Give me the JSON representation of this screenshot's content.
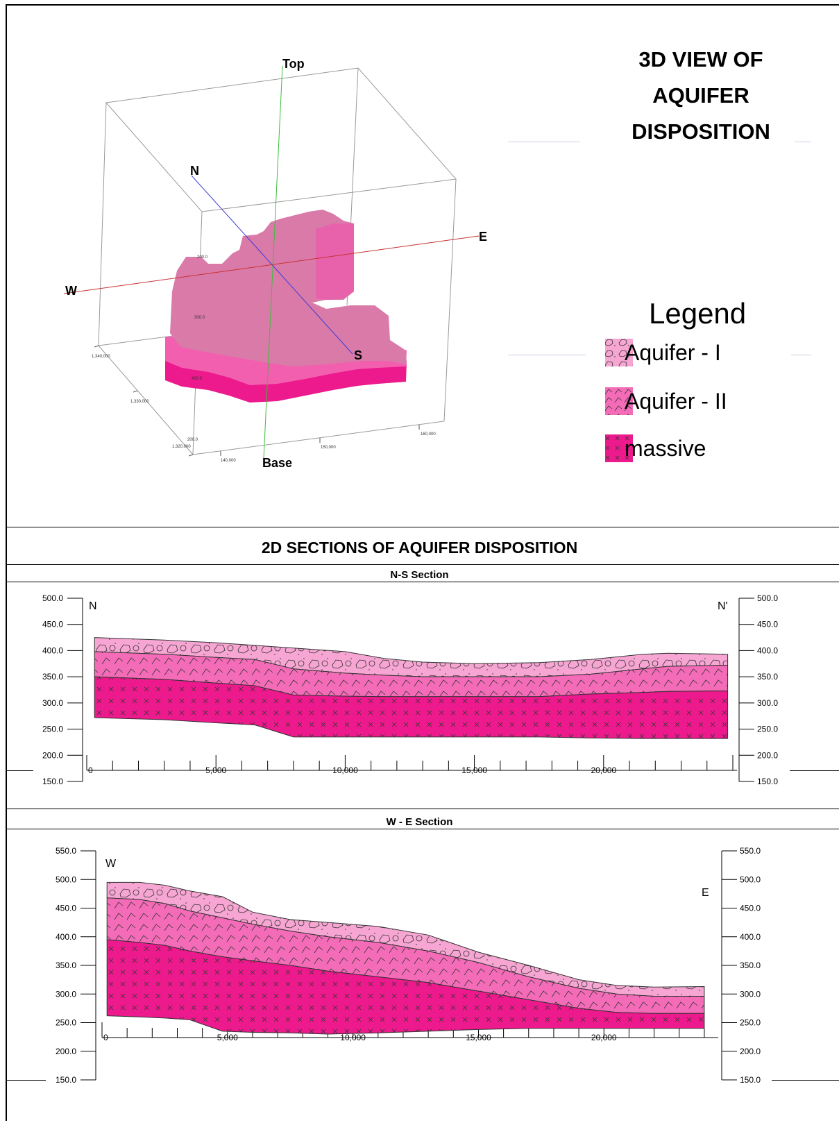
{
  "view3d": {
    "title_lines": [
      "3D VIEW OF",
      "AQUIFER",
      "DISPOSITION"
    ],
    "axis_labels": {
      "top": "Top",
      "base": "Base",
      "north": "N",
      "south": "S",
      "east": "E",
      "west": "W"
    },
    "depth_ticks": [
      "200.0",
      "300.0",
      "400.0",
      "200.0"
    ],
    "northing_ticks": [
      "1,340,000",
      "1,330,000",
      "1,320,000"
    ],
    "easting_ticks": [
      "140,000",
      "150,000",
      "160,000"
    ]
  },
  "legend": {
    "title": "Legend",
    "items": [
      {
        "label": "Aquifer - I",
        "color": "#f7a6d3",
        "pattern": "polygons"
      },
      {
        "label": "Aquifer - II",
        "color": "#f46cb8",
        "pattern": "hooks"
      },
      {
        "label": "massive",
        "color": "#ec1a8c",
        "pattern": "crosses"
      }
    ]
  },
  "sections_heading": "2D SECTIONS OF AQUIFER DISPOSITION",
  "chart_data": [
    {
      "type": "area",
      "title": "N-S Section",
      "left_label": "N",
      "right_label": "N'",
      "y_ticks": [
        "500.0",
        "450.0",
        "400.0",
        "350.0",
        "300.0",
        "250.0",
        "200.0",
        "150.0"
      ],
      "ylim": [
        150,
        500
      ],
      "x_ticks": [
        "0",
        "5,000",
        "10,000",
        "15,000",
        "20,000"
      ],
      "xlim": [
        0,
        25000
      ],
      "x": [
        300,
        3000,
        5000,
        6500,
        8000,
        10000,
        11500,
        13000,
        15000,
        17500,
        19500,
        21500,
        22500,
        24800
      ],
      "series": [
        {
          "name": "Aquifer - I",
          "top": [
            425,
            420,
            415,
            410,
            405,
            398,
            385,
            378,
            375,
            377,
            383,
            393,
            395,
            393
          ]
        },
        {
          "name": "Aquifer - II",
          "top": [
            398,
            393,
            387,
            383,
            365,
            357,
            353,
            350,
            350,
            350,
            355,
            365,
            370,
            372
          ]
        },
        {
          "name": "massive",
          "top": [
            350,
            345,
            338,
            333,
            315,
            313,
            312,
            312,
            312,
            312,
            317,
            320,
            322,
            323
          ],
          "bottom": [
            272,
            268,
            262,
            258,
            235,
            235,
            235,
            235,
            235,
            235,
            233,
            232,
            232,
            232
          ]
        }
      ]
    },
    {
      "type": "area",
      "title": "W - E Section",
      "left_label": "W",
      "right_label": "E",
      "y_ticks": [
        "550.0",
        "500.0",
        "450.0",
        "400.0",
        "350.0",
        "300.0",
        "250.0",
        "200.0",
        "150.0"
      ],
      "ylim": [
        150,
        550
      ],
      "x_ticks": [
        "0",
        "5,000",
        "10,000",
        "15,000",
        "20,000"
      ],
      "xlim": [
        0,
        24500
      ],
      "x": [
        200,
        1500,
        2500,
        3500,
        4800,
        6000,
        7500,
        9000,
        11000,
        13000,
        15000,
        17000,
        19000,
        20500,
        22000,
        24000
      ],
      "series": [
        {
          "name": "Aquifer - I",
          "top": [
            495,
            495,
            490,
            480,
            470,
            443,
            430,
            425,
            418,
            403,
            373,
            350,
            325,
            315,
            312,
            313
          ]
        },
        {
          "name": "Aquifer - II",
          "top": [
            468,
            465,
            458,
            445,
            433,
            422,
            410,
            400,
            390,
            375,
            355,
            330,
            310,
            300,
            296,
            296
          ]
        },
        {
          "name": "massive",
          "top": [
            395,
            390,
            385,
            375,
            365,
            358,
            350,
            340,
            330,
            320,
            305,
            290,
            275,
            268,
            266,
            266
          ],
          "bottom": [
            262,
            260,
            258,
            255,
            235,
            233,
            232,
            230,
            232,
            235,
            238,
            240,
            240,
            240,
            240,
            240
          ]
        }
      ]
    }
  ]
}
